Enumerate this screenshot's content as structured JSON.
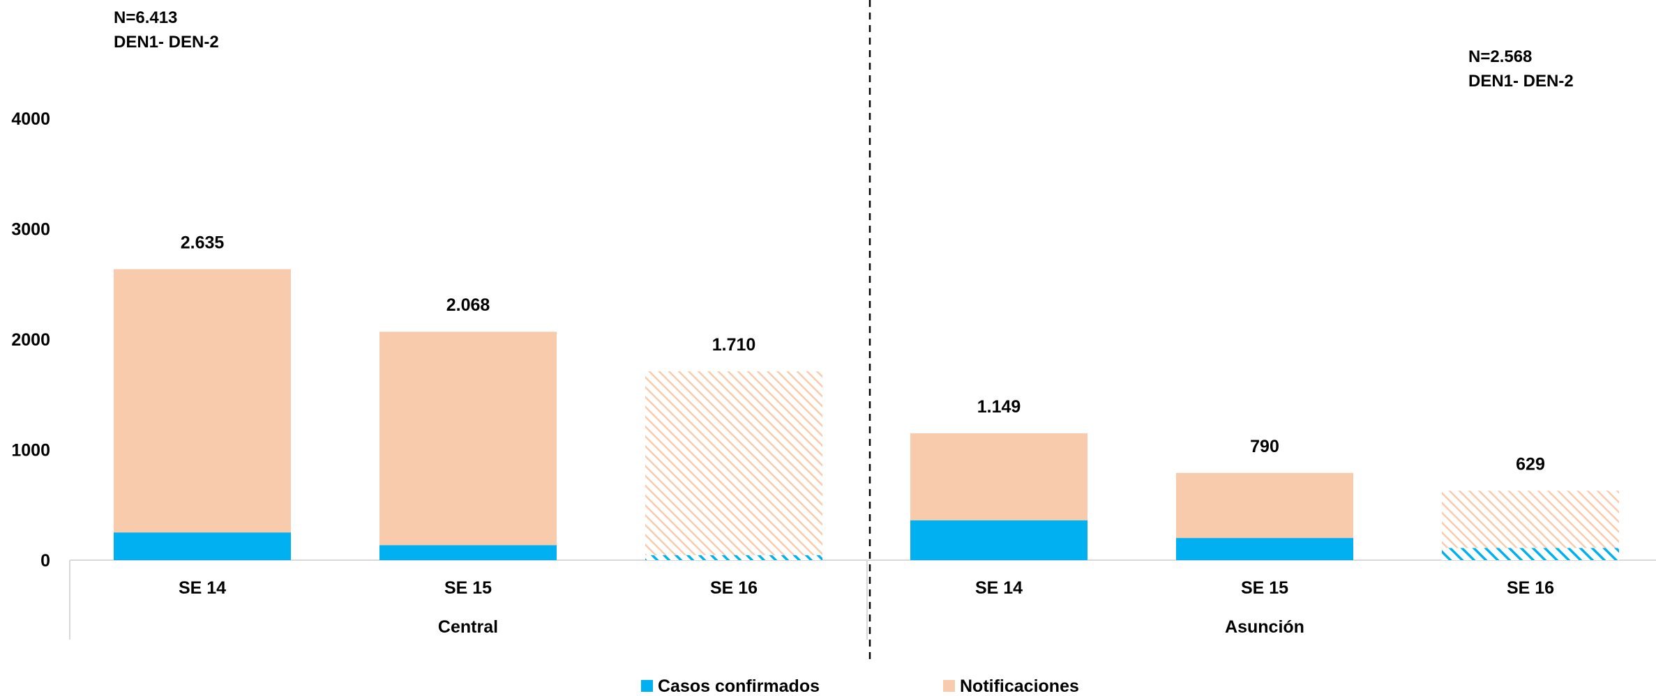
{
  "chart_data": {
    "type": "bar",
    "stacked": true,
    "groups": [
      {
        "name": "Central",
        "annotation": [
          "N=6.413",
          "DEN1- DEN-2"
        ],
        "categories": [
          "SE 14",
          "SE 15",
          "SE 16"
        ],
        "confirmados": [
          250,
          135,
          45
        ],
        "totals": [
          2635,
          2068,
          1710
        ],
        "total_labels": [
          "2.635",
          "2.068",
          "1.710"
        ],
        "hatched": [
          false,
          false,
          true
        ]
      },
      {
        "name": "Asunción",
        "annotation": [
          "N=2.568",
          "DEN1- DEN-2"
        ],
        "categories": [
          "SE 14",
          "SE 15",
          "SE 16"
        ],
        "confirmados": [
          360,
          200,
          110
        ],
        "totals": [
          1149,
          790,
          629
        ],
        "total_labels": [
          "1.149",
          "790",
          "629"
        ],
        "hatched": [
          false,
          false,
          true
        ]
      }
    ],
    "series": [
      {
        "name": "Casos confirmados",
        "color": "#00b0f0"
      },
      {
        "name": "Notificaciones",
        "color": "#f8cbad"
      }
    ],
    "ylim": [
      0,
      4000
    ],
    "yticks": [
      0,
      1000,
      2000,
      3000,
      4000
    ],
    "legend": "bottom-center",
    "grid": false
  }
}
